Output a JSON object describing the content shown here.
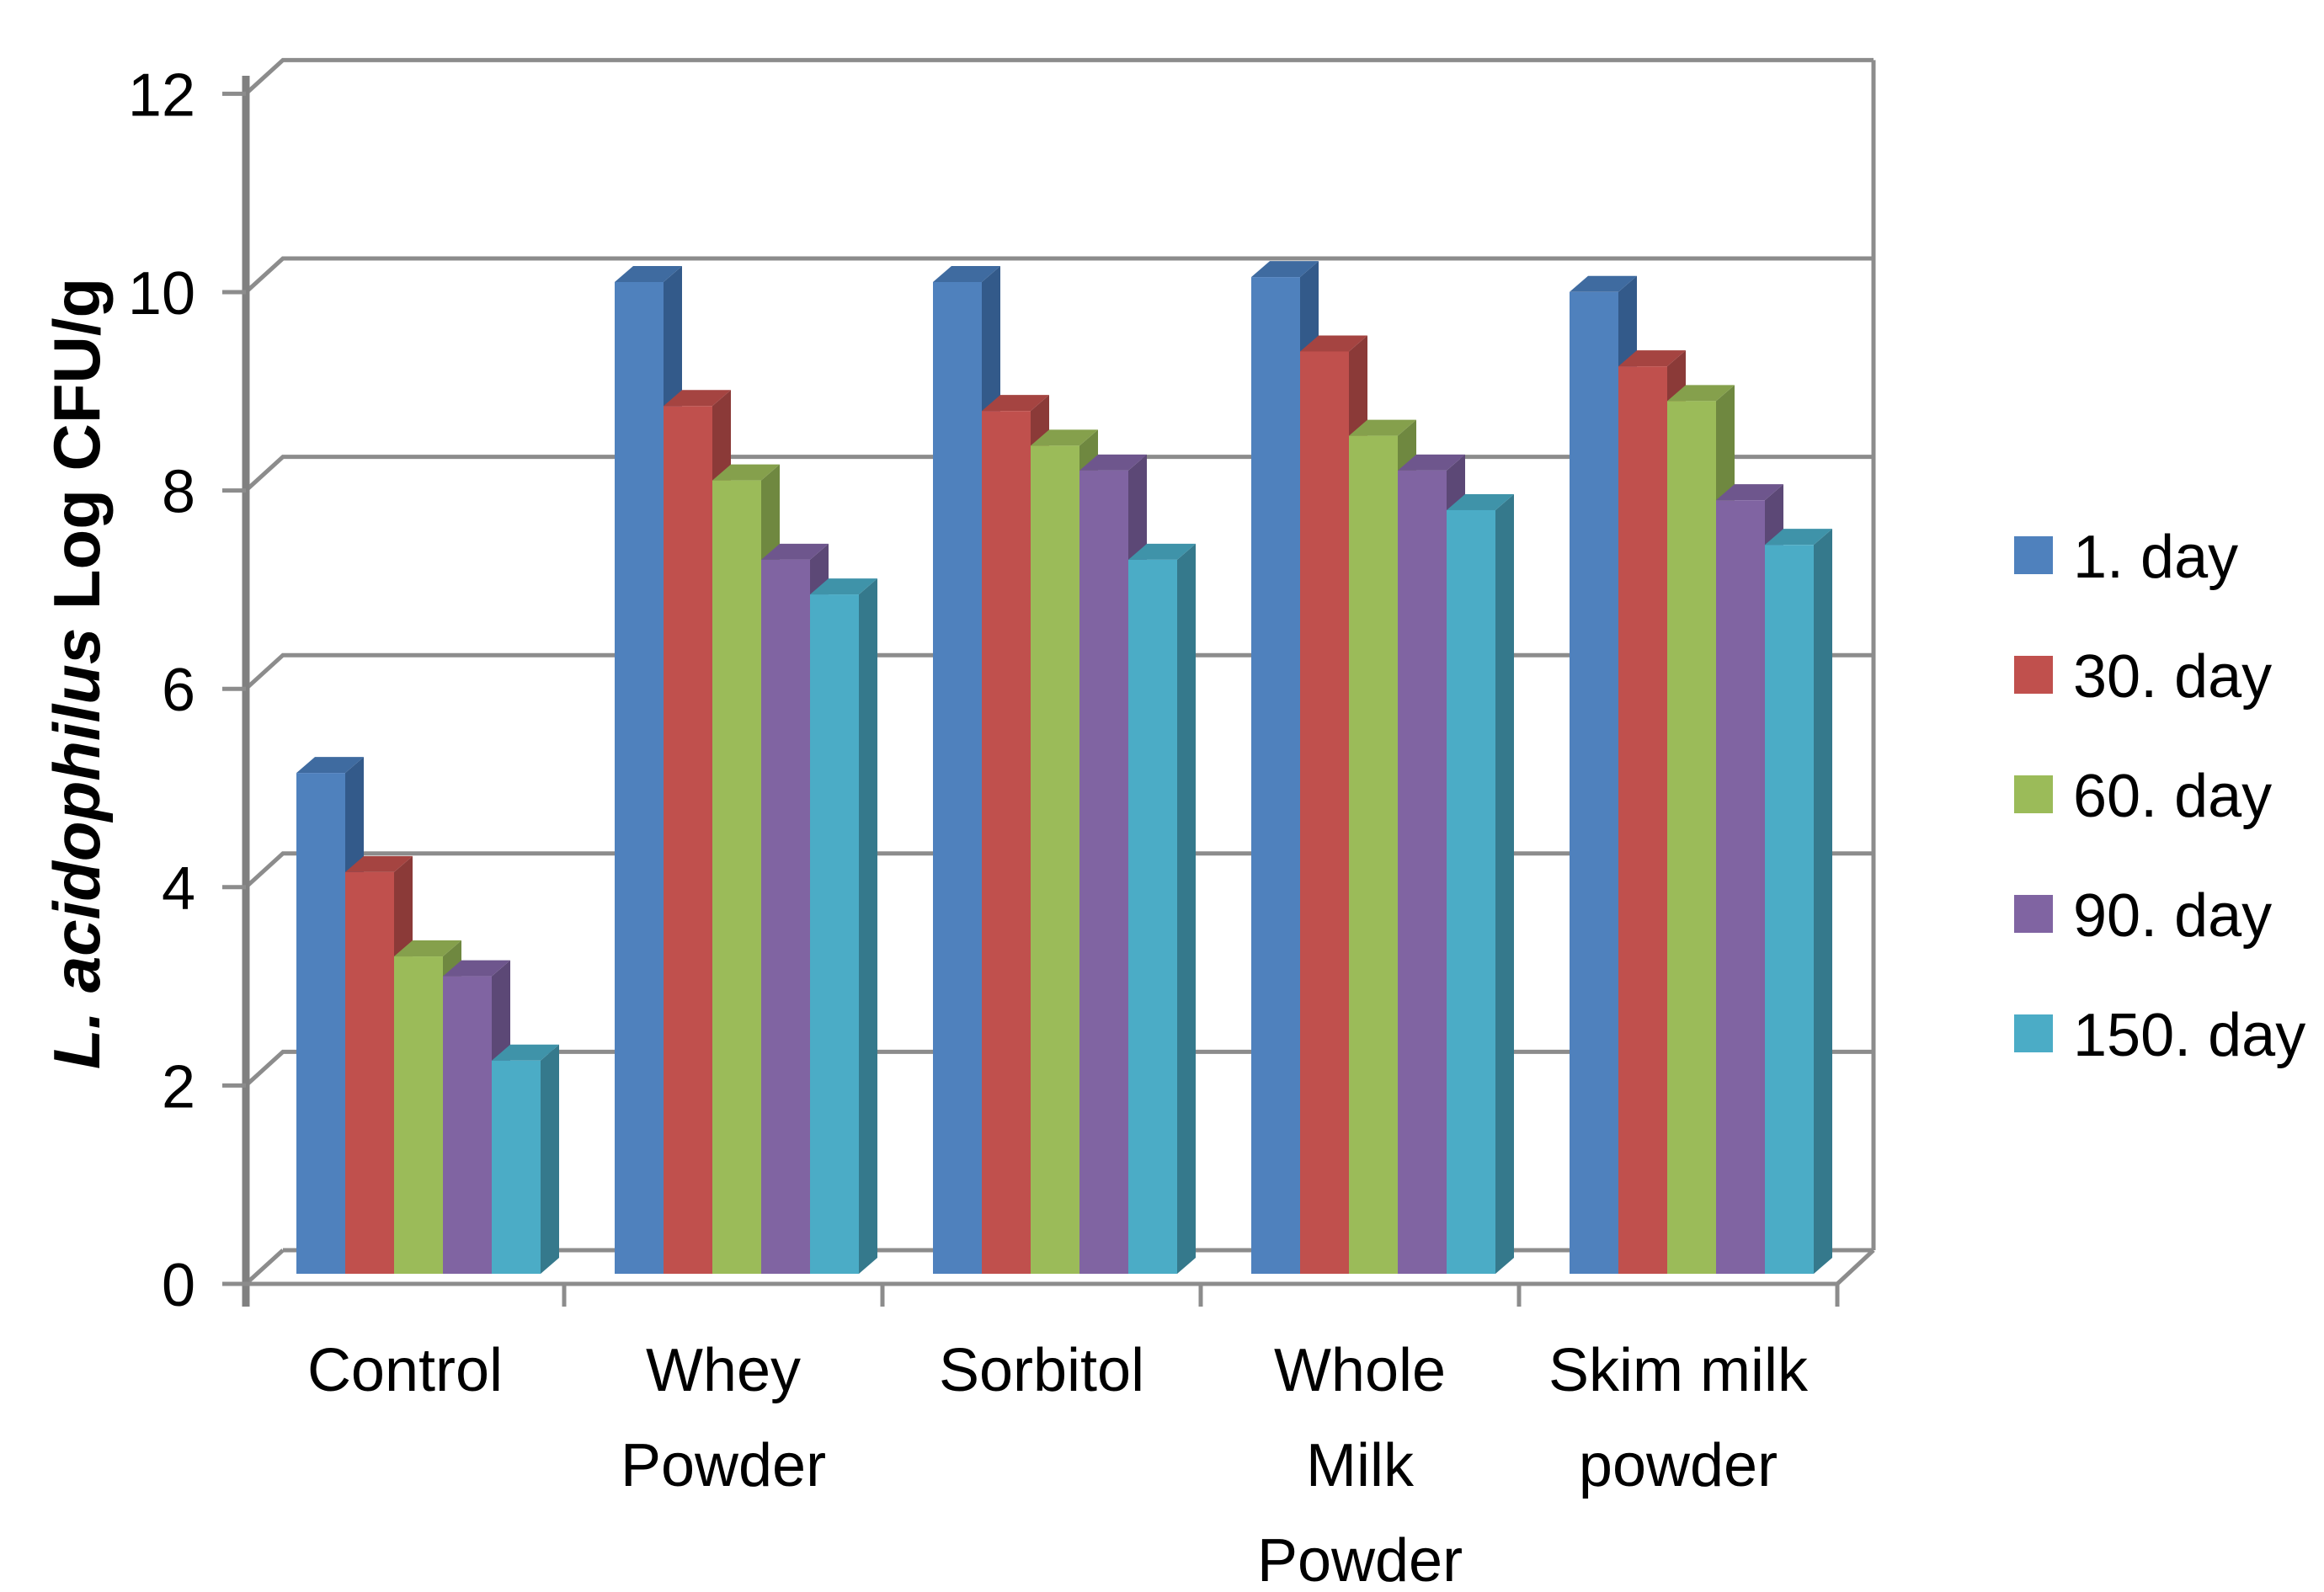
{
  "chart_data": {
    "type": "bar",
    "style": "3d-clustered-column",
    "title": "",
    "ylabel": "L. acidophilus Log CFU/g",
    "ylabel_italic_part": "L. acidophilus",
    "ylabel_regular_part": " Log CFU/g",
    "xlabel": "",
    "ylim": [
      0,
      12
    ],
    "ytick_step": 2,
    "yticks": [
      "0",
      "2",
      "4",
      "6",
      "8",
      "10",
      "12"
    ],
    "grid": true,
    "legend_position": "right",
    "background": "#FFFFFF",
    "grid_color": "#8C8C8C",
    "axis_color": "#808080",
    "categories": [
      "Control",
      "Whey Powder",
      "Sorbitol",
      "Whole Milk Powder",
      "Skim milk powder"
    ],
    "category_label_lines": [
      [
        "Control"
      ],
      [
        "Whey",
        "Powder"
      ],
      [
        "Sorbitol"
      ],
      [
        "Whole",
        "Milk",
        "Powder"
      ],
      [
        "Skim milk",
        "powder"
      ]
    ],
    "series": [
      {
        "name": "1. day",
        "color": "#4F81BD",
        "side_color": "#335A8A",
        "top_color": "#3F6BA0",
        "values": [
          5.05,
          10.0,
          10.0,
          10.05,
          9.9
        ]
      },
      {
        "name": "30. day",
        "color": "#C0504D",
        "side_color": "#8B3A38",
        "top_color": "#A54441",
        "values": [
          4.05,
          8.75,
          8.7,
          9.3,
          9.15
        ]
      },
      {
        "name": "60. day",
        "color": "#9BBB59",
        "side_color": "#6F8840",
        "top_color": "#85A04C",
        "values": [
          3.2,
          8.0,
          8.35,
          8.45,
          8.8
        ]
      },
      {
        "name": "90. day",
        "color": "#8064A2",
        "side_color": "#5C4876",
        "top_color": "#6E568D",
        "values": [
          3.0,
          7.2,
          8.1,
          8.1,
          7.8
        ]
      },
      {
        "name": "150. day",
        "color": "#4BACC6",
        "side_color": "#35798C",
        "top_color": "#3F93A9",
        "values": [
          2.15,
          6.85,
          7.2,
          7.7,
          7.35
        ]
      }
    ]
  }
}
